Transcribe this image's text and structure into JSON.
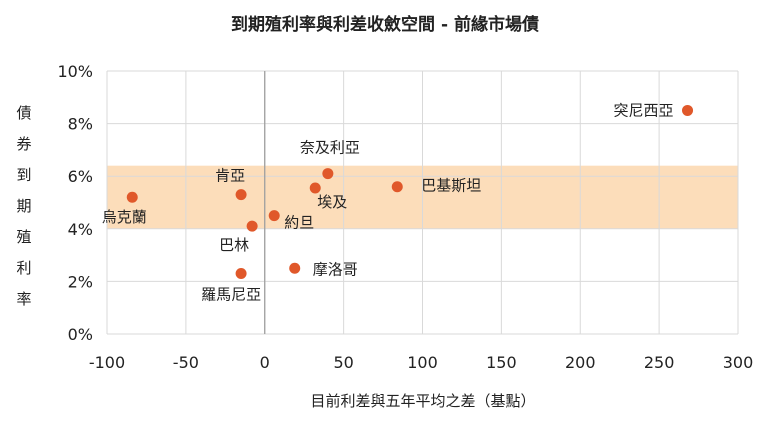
{
  "chart_data": {
    "type": "scatter",
    "title": "到期殖利率與利差收斂空間 - 前緣市場債",
    "xlabel": "目前利差與五年平均之差（基點）",
    "ylabel": "債券到期殖利率",
    "xlim": [
      -100,
      300
    ],
    "ylim": [
      0,
      10
    ],
    "x_ticks": [
      "-100",
      "-50",
      "0",
      "50",
      "100",
      "150",
      "200",
      "250",
      "300"
    ],
    "y_ticks": [
      "0%",
      "2%",
      "4%",
      "6%",
      "8%",
      "10%"
    ],
    "band": {
      "y_from": 4.0,
      "y_to": 6.4,
      "color": "#fbd7ae"
    },
    "point_color": "#e0582a",
    "grid": true,
    "points": [
      {
        "label": "突尼西亞",
        "x": 268,
        "y": 8.5
      },
      {
        "label": "奈及利亞",
        "x": 40,
        "y": 6.1
      },
      {
        "label": "肯亞",
        "x": -15,
        "y": 5.3
      },
      {
        "label": "烏克蘭",
        "x": -84,
        "y": 5.2
      },
      {
        "label": "巴基斯坦",
        "x": 84,
        "y": 5.6
      },
      {
        "label": "埃及",
        "x": 32,
        "y": 5.55
      },
      {
        "label": "約旦",
        "x": 6,
        "y": 4.5
      },
      {
        "label": "巴林",
        "x": -8,
        "y": 4.1
      },
      {
        "label": "摩洛哥",
        "x": 19,
        "y": 2.5
      },
      {
        "label": "羅馬尼亞",
        "x": -15,
        "y": 2.3
      }
    ]
  }
}
